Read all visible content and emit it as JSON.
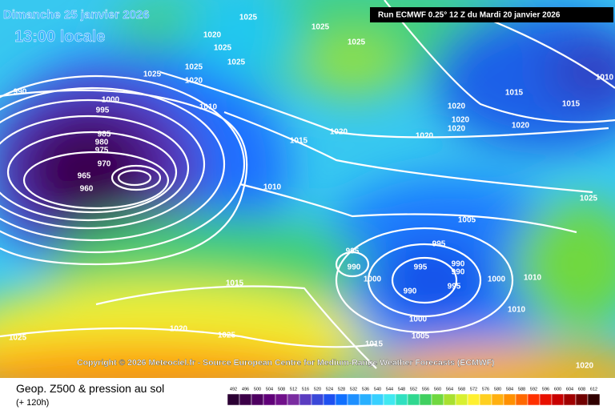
{
  "header": {
    "date": "Dimanche 25 janvier 2026",
    "time": "13:00 locale",
    "run": "Run ECMWF 0.25° 12 Z du Mardi 20 janvier 2026"
  },
  "copyright": "Copyright © 2026 Meteociel.fr - Source European Centre for Medium-Range Weather Forecasts (ECMWF)",
  "footer": {
    "title": "Geop. Z500 & pression au sol",
    "lead": "(+ 120h)"
  },
  "isobar_labels": [
    "990",
    "995",
    "1000",
    "985",
    "980",
    "975",
    "970",
    "965",
    "960",
    "1010",
    "1015",
    "1020",
    "1010",
    "1025",
    "1025",
    "1020",
    "1020",
    "1025",
    "1025",
    "1025",
    "1025",
    "1025",
    "1020",
    "1020",
    "1020",
    "1020",
    "1015",
    "1015",
    "1020",
    "1010",
    "1025",
    "1005",
    "995",
    "995",
    "990",
    "1000",
    "995",
    "990",
    "995",
    "990",
    "990",
    "1000",
    "1010",
    "1010",
    "1000",
    "1005",
    "1015",
    "1015",
    "1020",
    "1025",
    "1025",
    "1020"
  ],
  "scale": [
    {
      "value": 492,
      "color": "#2b0033"
    },
    {
      "value": 496,
      "color": "#3c0048"
    },
    {
      "value": 500,
      "color": "#4e0060"
    },
    {
      "value": 504,
      "color": "#600078"
    },
    {
      "value": 508,
      "color": "#70108a"
    },
    {
      "value": 512,
      "color": "#7a2ca0"
    },
    {
      "value": 516,
      "color": "#5a3cc0"
    },
    {
      "value": 520,
      "color": "#3a48d8"
    },
    {
      "value": 524,
      "color": "#1e50f0"
    },
    {
      "value": 528,
      "color": "#1070ff"
    },
    {
      "value": 532,
      "color": "#1e90ff"
    },
    {
      "value": 536,
      "color": "#28b0ff"
    },
    {
      "value": 540,
      "color": "#38d0ff"
    },
    {
      "value": 544,
      "color": "#40e8f0"
    },
    {
      "value": 548,
      "color": "#30e0c0"
    },
    {
      "value": 552,
      "color": "#30d890"
    },
    {
      "value": 556,
      "color": "#40d060"
    },
    {
      "value": 560,
      "color": "#70d840"
    },
    {
      "value": 564,
      "color": "#a8e030"
    },
    {
      "value": 568,
      "color": "#d8f030"
    },
    {
      "value": 572,
      "color": "#fff030"
    },
    {
      "value": 576,
      "color": "#ffd020"
    },
    {
      "value": 580,
      "color": "#ffb010"
    },
    {
      "value": 584,
      "color": "#ff9000"
    },
    {
      "value": 588,
      "color": "#ff6800"
    },
    {
      "value": 592,
      "color": "#ff3000"
    },
    {
      "value": 596,
      "color": "#e81000"
    },
    {
      "value": 600,
      "color": "#c80000"
    },
    {
      "value": 604,
      "color": "#a00000"
    },
    {
      "value": 608,
      "color": "#700000"
    },
    {
      "value": 612,
      "color": "#300000"
    }
  ]
}
